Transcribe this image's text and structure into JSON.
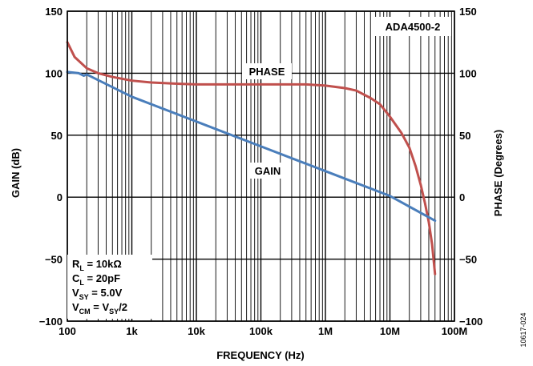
{
  "chart_data": {
    "type": "line",
    "title": "",
    "xlabel": "FREQUENCY (Hz)",
    "ylabel_left": "GAIN (dB)",
    "ylabel_right": "PHASE (Degrees)",
    "x_scale": "log",
    "xlim": [
      100,
      100000000
    ],
    "ylim_left": [
      -100,
      150
    ],
    "ylim_right": [
      -100,
      150
    ],
    "x_tick_values": [
      100,
      1000,
      10000,
      100000,
      1000000,
      10000000,
      100000000
    ],
    "x_tick_labels": [
      "100",
      "1k",
      "10k",
      "100k",
      "1M",
      "10M",
      "100M"
    ],
    "y_tick_values": [
      -100,
      -50,
      0,
      50,
      100,
      150
    ],
    "y_left_tick_labels": [
      "−100",
      "−50",
      "0",
      "50",
      "100",
      "150"
    ],
    "y_right_tick_labels": [
      "−100",
      "−50",
      "0",
      "50",
      "100",
      "150"
    ],
    "grid": true,
    "device_label": "ADA4500-2",
    "series": [
      {
        "name": "PHASE",
        "color": "#c0504d",
        "points": [
          [
            100,
            125
          ],
          [
            130,
            113
          ],
          [
            200,
            104
          ],
          [
            300,
            100
          ],
          [
            500,
            97
          ],
          [
            1000,
            94
          ],
          [
            2000,
            92.5
          ],
          [
            5000,
            91.5
          ],
          [
            10000,
            91
          ],
          [
            100000,
            91
          ],
          [
            500000,
            91
          ],
          [
            1000000,
            90
          ],
          [
            2000000,
            88
          ],
          [
            3000000,
            86
          ],
          [
            5000000,
            80
          ],
          [
            7000000,
            75
          ],
          [
            10000000,
            65
          ],
          [
            15000000,
            52
          ],
          [
            20000000,
            40
          ],
          [
            25000000,
            25
          ],
          [
            30000000,
            10
          ],
          [
            35000000,
            -5
          ],
          [
            40000000,
            -20
          ],
          [
            45000000,
            -38
          ],
          [
            50000000,
            -62
          ]
        ]
      },
      {
        "name": "GAIN",
        "color": "#4a7ebb",
        "points": [
          [
            100,
            101
          ],
          [
            150,
            100
          ],
          [
            180,
            98
          ],
          [
            200,
            99
          ],
          [
            1000,
            81
          ],
          [
            10000,
            61
          ],
          [
            100000,
            41
          ],
          [
            1000000,
            21
          ],
          [
            10000000,
            1
          ],
          [
            50000000,
            -19
          ]
        ]
      }
    ],
    "annotations": {
      "phase_label": "PHASE",
      "gain_label": "GAIN",
      "conditions": [
        {
          "main": "R",
          "sub": "L",
          "rest": " = 10kΩ"
        },
        {
          "main": "C",
          "sub": "L",
          "rest": " = 20pF"
        },
        {
          "main": "V",
          "sub": "SY",
          "rest": " = 5.0V"
        },
        {
          "main": "V",
          "sub": "CM",
          "rest": " = V",
          "sub2": "SY",
          "rest2": "/2"
        }
      ]
    },
    "figure_id": "10617-024"
  }
}
